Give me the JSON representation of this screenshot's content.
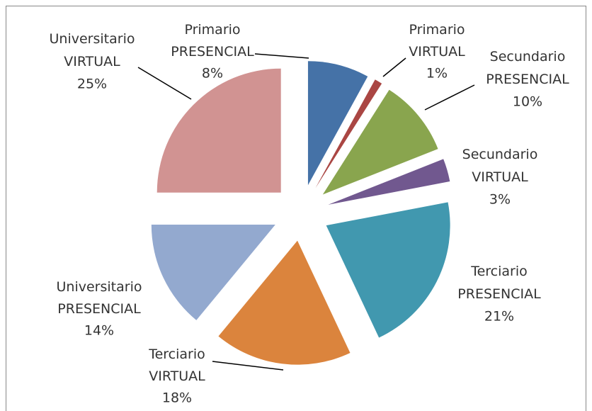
{
  "chart_data": {
    "type": "pie",
    "categories": [
      "Primario PRESENCIAL",
      "Primario VIRTUAL",
      "Secundario PRESENCIAL",
      "Secundario VIRTUAL",
      "Terciario PRESENCIAL",
      "Terciario VIRTUAL",
      "Universitario PRESENCIAL",
      "Universitario VIRTUAL"
    ],
    "values": [
      8,
      1,
      10,
      3,
      21,
      18,
      14,
      25
    ],
    "value_labels": [
      "8%",
      "1%",
      "10%",
      "3%",
      "21%",
      "18%",
      "14%",
      "25%"
    ],
    "colors": [
      "#4572a7",
      "#aa4643",
      "#89a54e",
      "#71588f",
      "#4198af",
      "#db843d",
      "#93a9cf",
      "#d19392"
    ],
    "exploded": true
  }
}
